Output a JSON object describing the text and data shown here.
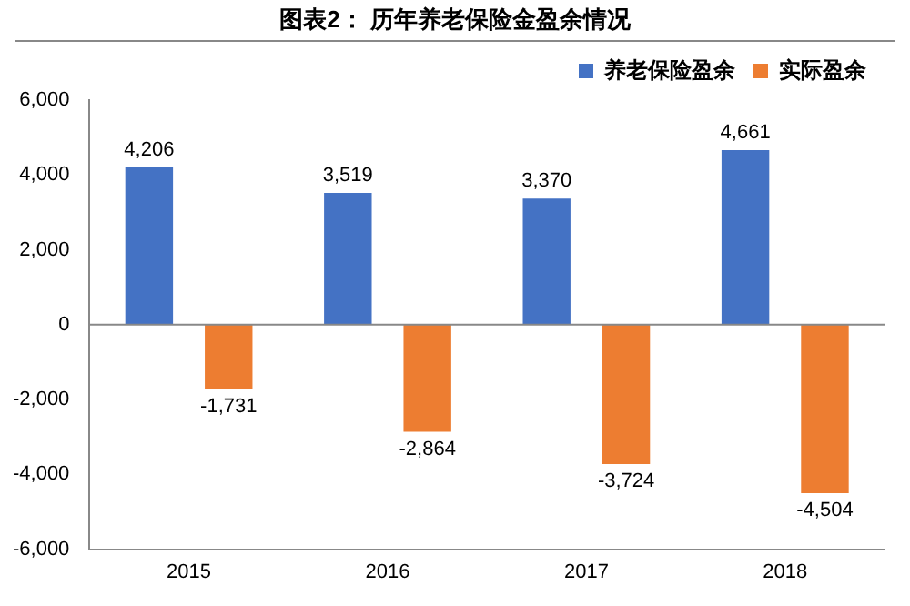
{
  "chart_data": {
    "type": "bar",
    "title": "图表2：  历年养老保险金盈余情况",
    "categories": [
      "2015",
      "2016",
      "2017",
      "2018"
    ],
    "series": [
      {
        "name": "养老保险盈余",
        "color": "#4472c4",
        "values": [
          4206,
          3519,
          3370,
          4661
        ],
        "value_labels": [
          "4,206",
          "3,519",
          "3,370",
          "4,661"
        ]
      },
      {
        "name": "实际盈余",
        "color": "#ed7d31",
        "values": [
          -1731,
          -2864,
          -3724,
          -4504
        ],
        "value_labels": [
          "-1,731",
          "-2,864",
          "-3,724",
          "-4,504"
        ]
      }
    ],
    "ylim": [
      -6000,
      6000
    ],
    "yticks": [
      {
        "value": -6000,
        "label": "-6,000"
      },
      {
        "value": -4000,
        "label": "-4,000"
      },
      {
        "value": -2000,
        "label": "-2,000"
      },
      0,
      {
        "value": 2000,
        "label": "2,000"
      },
      {
        "value": 4000,
        "label": "4,000"
      },
      {
        "value": 6000,
        "label": "6,000"
      }
    ],
    "grid": false,
    "legend": "top right",
    "ref_lines": [
      {
        "axis": "y",
        "value": 0,
        "color": "#888888"
      }
    ]
  }
}
